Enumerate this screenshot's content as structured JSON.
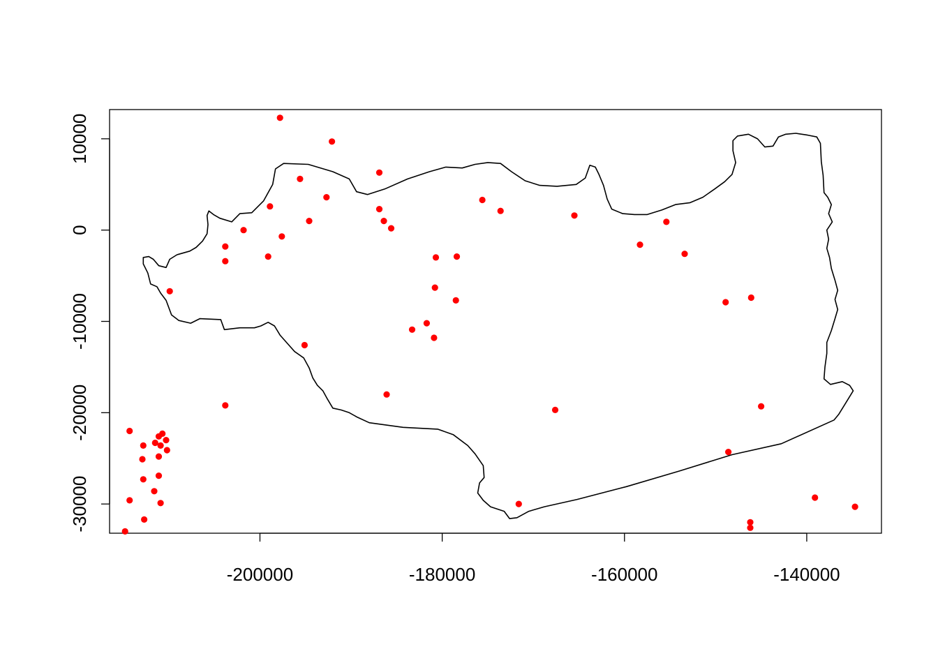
{
  "chart_data": {
    "type": "scatter",
    "title": "",
    "xlabel": "",
    "ylabel": "",
    "xlim": [
      -216500,
      -131800
    ],
    "ylim": [
      -33200,
      13200
    ],
    "x_ticks": [
      -200000,
      -180000,
      -160000,
      -140000
    ],
    "x_tick_labels": [
      "-200000",
      "-180000",
      "-160000",
      "-140000"
    ],
    "y_ticks": [
      -30000,
      -20000,
      -10000,
      0,
      10000
    ],
    "y_tick_labels": [
      "-30000",
      "-20000",
      "-10000",
      "0",
      "10000"
    ],
    "point_color": "#ff0000",
    "line_color": "#000000",
    "grid": false,
    "series": [
      {
        "type": "scatter",
        "points": [
          [
            -197800,
            12300
          ],
          [
            -192100,
            9700
          ],
          [
            -186900,
            6300
          ],
          [
            -195600,
            5600
          ],
          [
            -192700,
            3600
          ],
          [
            -198900,
            2600
          ],
          [
            -186900,
            2300
          ],
          [
            -175600,
            3300
          ],
          [
            -173600,
            2100
          ],
          [
            -165500,
            1600
          ],
          [
            -155400,
            900
          ],
          [
            -194600,
            1000
          ],
          [
            -186400,
            1000
          ],
          [
            -185600,
            200
          ],
          [
            -201800,
            0
          ],
          [
            -197600,
            -700
          ],
          [
            -203800,
            -1800
          ],
          [
            -158300,
            -1600
          ],
          [
            -199100,
            -2900
          ],
          [
            -180700,
            -3000
          ],
          [
            -178400,
            -2900
          ],
          [
            -153400,
            -2600
          ],
          [
            -203800,
            -3400
          ],
          [
            -180800,
            -6300
          ],
          [
            -209900,
            -6700
          ],
          [
            -178500,
            -7700
          ],
          [
            -148900,
            -7900
          ],
          [
            -146100,
            -7400
          ],
          [
            -181700,
            -10200
          ],
          [
            -183300,
            -10900
          ],
          [
            -180900,
            -11800
          ],
          [
            -195100,
            -12600
          ],
          [
            -186100,
            -18000
          ],
          [
            -203800,
            -19200
          ],
          [
            -167600,
            -19700
          ],
          [
            -145000,
            -19300
          ],
          [
            -214300,
            -22000
          ],
          [
            -211100,
            -22600
          ],
          [
            -210700,
            -22300
          ],
          [
            -210300,
            -23000
          ],
          [
            -212800,
            -23600
          ],
          [
            -211500,
            -23300
          ],
          [
            -210900,
            -23600
          ],
          [
            -210200,
            -24100
          ],
          [
            -148600,
            -24300
          ],
          [
            -211100,
            -24800
          ],
          [
            -212900,
            -25100
          ],
          [
            -211100,
            -26900
          ],
          [
            -212800,
            -27300
          ],
          [
            -211600,
            -28600
          ],
          [
            -214300,
            -29600
          ],
          [
            -210900,
            -29900
          ],
          [
            -171600,
            -30000
          ],
          [
            -139100,
            -29300
          ],
          [
            -134700,
            -30300
          ],
          [
            -212700,
            -31700
          ],
          [
            -146200,
            -32000
          ],
          [
            -146200,
            -32600
          ],
          [
            -214800,
            -33000
          ]
        ]
      },
      {
        "type": "line",
        "closed": true,
        "points": [
          [
            -205600,
            2100
          ],
          [
            -205100,
            1700
          ],
          [
            -204400,
            1300
          ],
          [
            -203100,
            900
          ],
          [
            -202200,
            1800
          ],
          [
            -200900,
            1900
          ],
          [
            -199600,
            3200
          ],
          [
            -198600,
            5000
          ],
          [
            -198300,
            6700
          ],
          [
            -197400,
            7300
          ],
          [
            -194700,
            7200
          ],
          [
            -192000,
            6400
          ],
          [
            -190200,
            5600
          ],
          [
            -189400,
            4200
          ],
          [
            -188200,
            3900
          ],
          [
            -186300,
            4500
          ],
          [
            -183800,
            5600
          ],
          [
            -181400,
            6400
          ],
          [
            -179600,
            6900
          ],
          [
            -177800,
            6800
          ],
          [
            -176400,
            7200
          ],
          [
            -175000,
            7400
          ],
          [
            -173600,
            7300
          ],
          [
            -172400,
            6400
          ],
          [
            -170900,
            5400
          ],
          [
            -169300,
            4900
          ],
          [
            -167400,
            4800
          ],
          [
            -165300,
            5000
          ],
          [
            -164300,
            5700
          ],
          [
            -163800,
            7100
          ],
          [
            -163200,
            6900
          ],
          [
            -162800,
            6100
          ],
          [
            -162300,
            4900
          ],
          [
            -161900,
            3400
          ],
          [
            -161400,
            2300
          ],
          [
            -160200,
            1800
          ],
          [
            -158900,
            1700
          ],
          [
            -157500,
            1700
          ],
          [
            -155900,
            2200
          ],
          [
            -154400,
            2800
          ],
          [
            -152800,
            3000
          ],
          [
            -151400,
            3600
          ],
          [
            -150100,
            4500
          ],
          [
            -149000,
            5300
          ],
          [
            -148200,
            6100
          ],
          [
            -147800,
            7400
          ],
          [
            -148100,
            8700
          ],
          [
            -148100,
            9800
          ],
          [
            -147600,
            10300
          ],
          [
            -146400,
            10500
          ],
          [
            -145400,
            10000
          ],
          [
            -144600,
            9100
          ],
          [
            -143700,
            9200
          ],
          [
            -143100,
            10200
          ],
          [
            -142300,
            10500
          ],
          [
            -141200,
            10600
          ],
          [
            -139900,
            10400
          ],
          [
            -138900,
            10200
          ],
          [
            -138500,
            9500
          ],
          [
            -138400,
            7500
          ],
          [
            -138200,
            6000
          ],
          [
            -138100,
            4100
          ],
          [
            -137700,
            3600
          ],
          [
            -137300,
            2800
          ],
          [
            -137600,
            1800
          ],
          [
            -137200,
            900
          ],
          [
            -137800,
            0
          ],
          [
            -137600,
            -1000
          ],
          [
            -137800,
            -2000
          ],
          [
            -137500,
            -3000
          ],
          [
            -137300,
            -4200
          ],
          [
            -136900,
            -5500
          ],
          [
            -136600,
            -6600
          ],
          [
            -136900,
            -7600
          ],
          [
            -136600,
            -8700
          ],
          [
            -136900,
            -9700
          ],
          [
            -137300,
            -11000
          ],
          [
            -137800,
            -12300
          ],
          [
            -137800,
            -13500
          ],
          [
            -138000,
            -15000
          ],
          [
            -138100,
            -16300
          ],
          [
            -137400,
            -16900
          ],
          [
            -136100,
            -16600
          ],
          [
            -135300,
            -17000
          ],
          [
            -134900,
            -17600
          ],
          [
            -135700,
            -18900
          ],
          [
            -136500,
            -20200
          ],
          [
            -137000,
            -20800
          ],
          [
            -142800,
            -23400
          ],
          [
            -148200,
            -24600
          ],
          [
            -154000,
            -26400
          ],
          [
            -159800,
            -28100
          ],
          [
            -165200,
            -29500
          ],
          [
            -168800,
            -30300
          ],
          [
            -170500,
            -30800
          ],
          [
            -171800,
            -31500
          ],
          [
            -172600,
            -31600
          ],
          [
            -173200,
            -30800
          ],
          [
            -174700,
            -30300
          ],
          [
            -175500,
            -29600
          ],
          [
            -176100,
            -28800
          ],
          [
            -175900,
            -27700
          ],
          [
            -175400,
            -27100
          ],
          [
            -175500,
            -25800
          ],
          [
            -176400,
            -24500
          ],
          [
            -177200,
            -23600
          ],
          [
            -178800,
            -22400
          ],
          [
            -180500,
            -21800
          ],
          [
            -184300,
            -21600
          ],
          [
            -188000,
            -21100
          ],
          [
            -189300,
            -20500
          ],
          [
            -190200,
            -20000
          ],
          [
            -191100,
            -19700
          ],
          [
            -192000,
            -19500
          ],
          [
            -192600,
            -18500
          ],
          [
            -193100,
            -17600
          ],
          [
            -193700,
            -17000
          ],
          [
            -194200,
            -16200
          ],
          [
            -194600,
            -15100
          ],
          [
            -195200,
            -14000
          ],
          [
            -196200,
            -13300
          ],
          [
            -197000,
            -12400
          ],
          [
            -197800,
            -11500
          ],
          [
            -198400,
            -10500
          ],
          [
            -199100,
            -10100
          ],
          [
            -199900,
            -10500
          ],
          [
            -200600,
            -10700
          ],
          [
            -202200,
            -10700
          ],
          [
            -203900,
            -10900
          ],
          [
            -204300,
            -9800
          ],
          [
            -206600,
            -9700
          ],
          [
            -207600,
            -10200
          ],
          [
            -208900,
            -9900
          ],
          [
            -209700,
            -9300
          ],
          [
            -210300,
            -7700
          ],
          [
            -210900,
            -6900
          ],
          [
            -211300,
            -6200
          ],
          [
            -212000,
            -5900
          ],
          [
            -212300,
            -4700
          ],
          [
            -212800,
            -3700
          ],
          [
            -212800,
            -3000
          ],
          [
            -212200,
            -2900
          ],
          [
            -211700,
            -3200
          ],
          [
            -211100,
            -3900
          ],
          [
            -210300,
            -4100
          ],
          [
            -209900,
            -3200
          ],
          [
            -209100,
            -2700
          ],
          [
            -207700,
            -2300
          ],
          [
            -207000,
            -1900
          ],
          [
            -206300,
            -1200
          ],
          [
            -205800,
            -400
          ],
          [
            -205700,
            600
          ],
          [
            -205800,
            1600
          ]
        ]
      }
    ]
  }
}
